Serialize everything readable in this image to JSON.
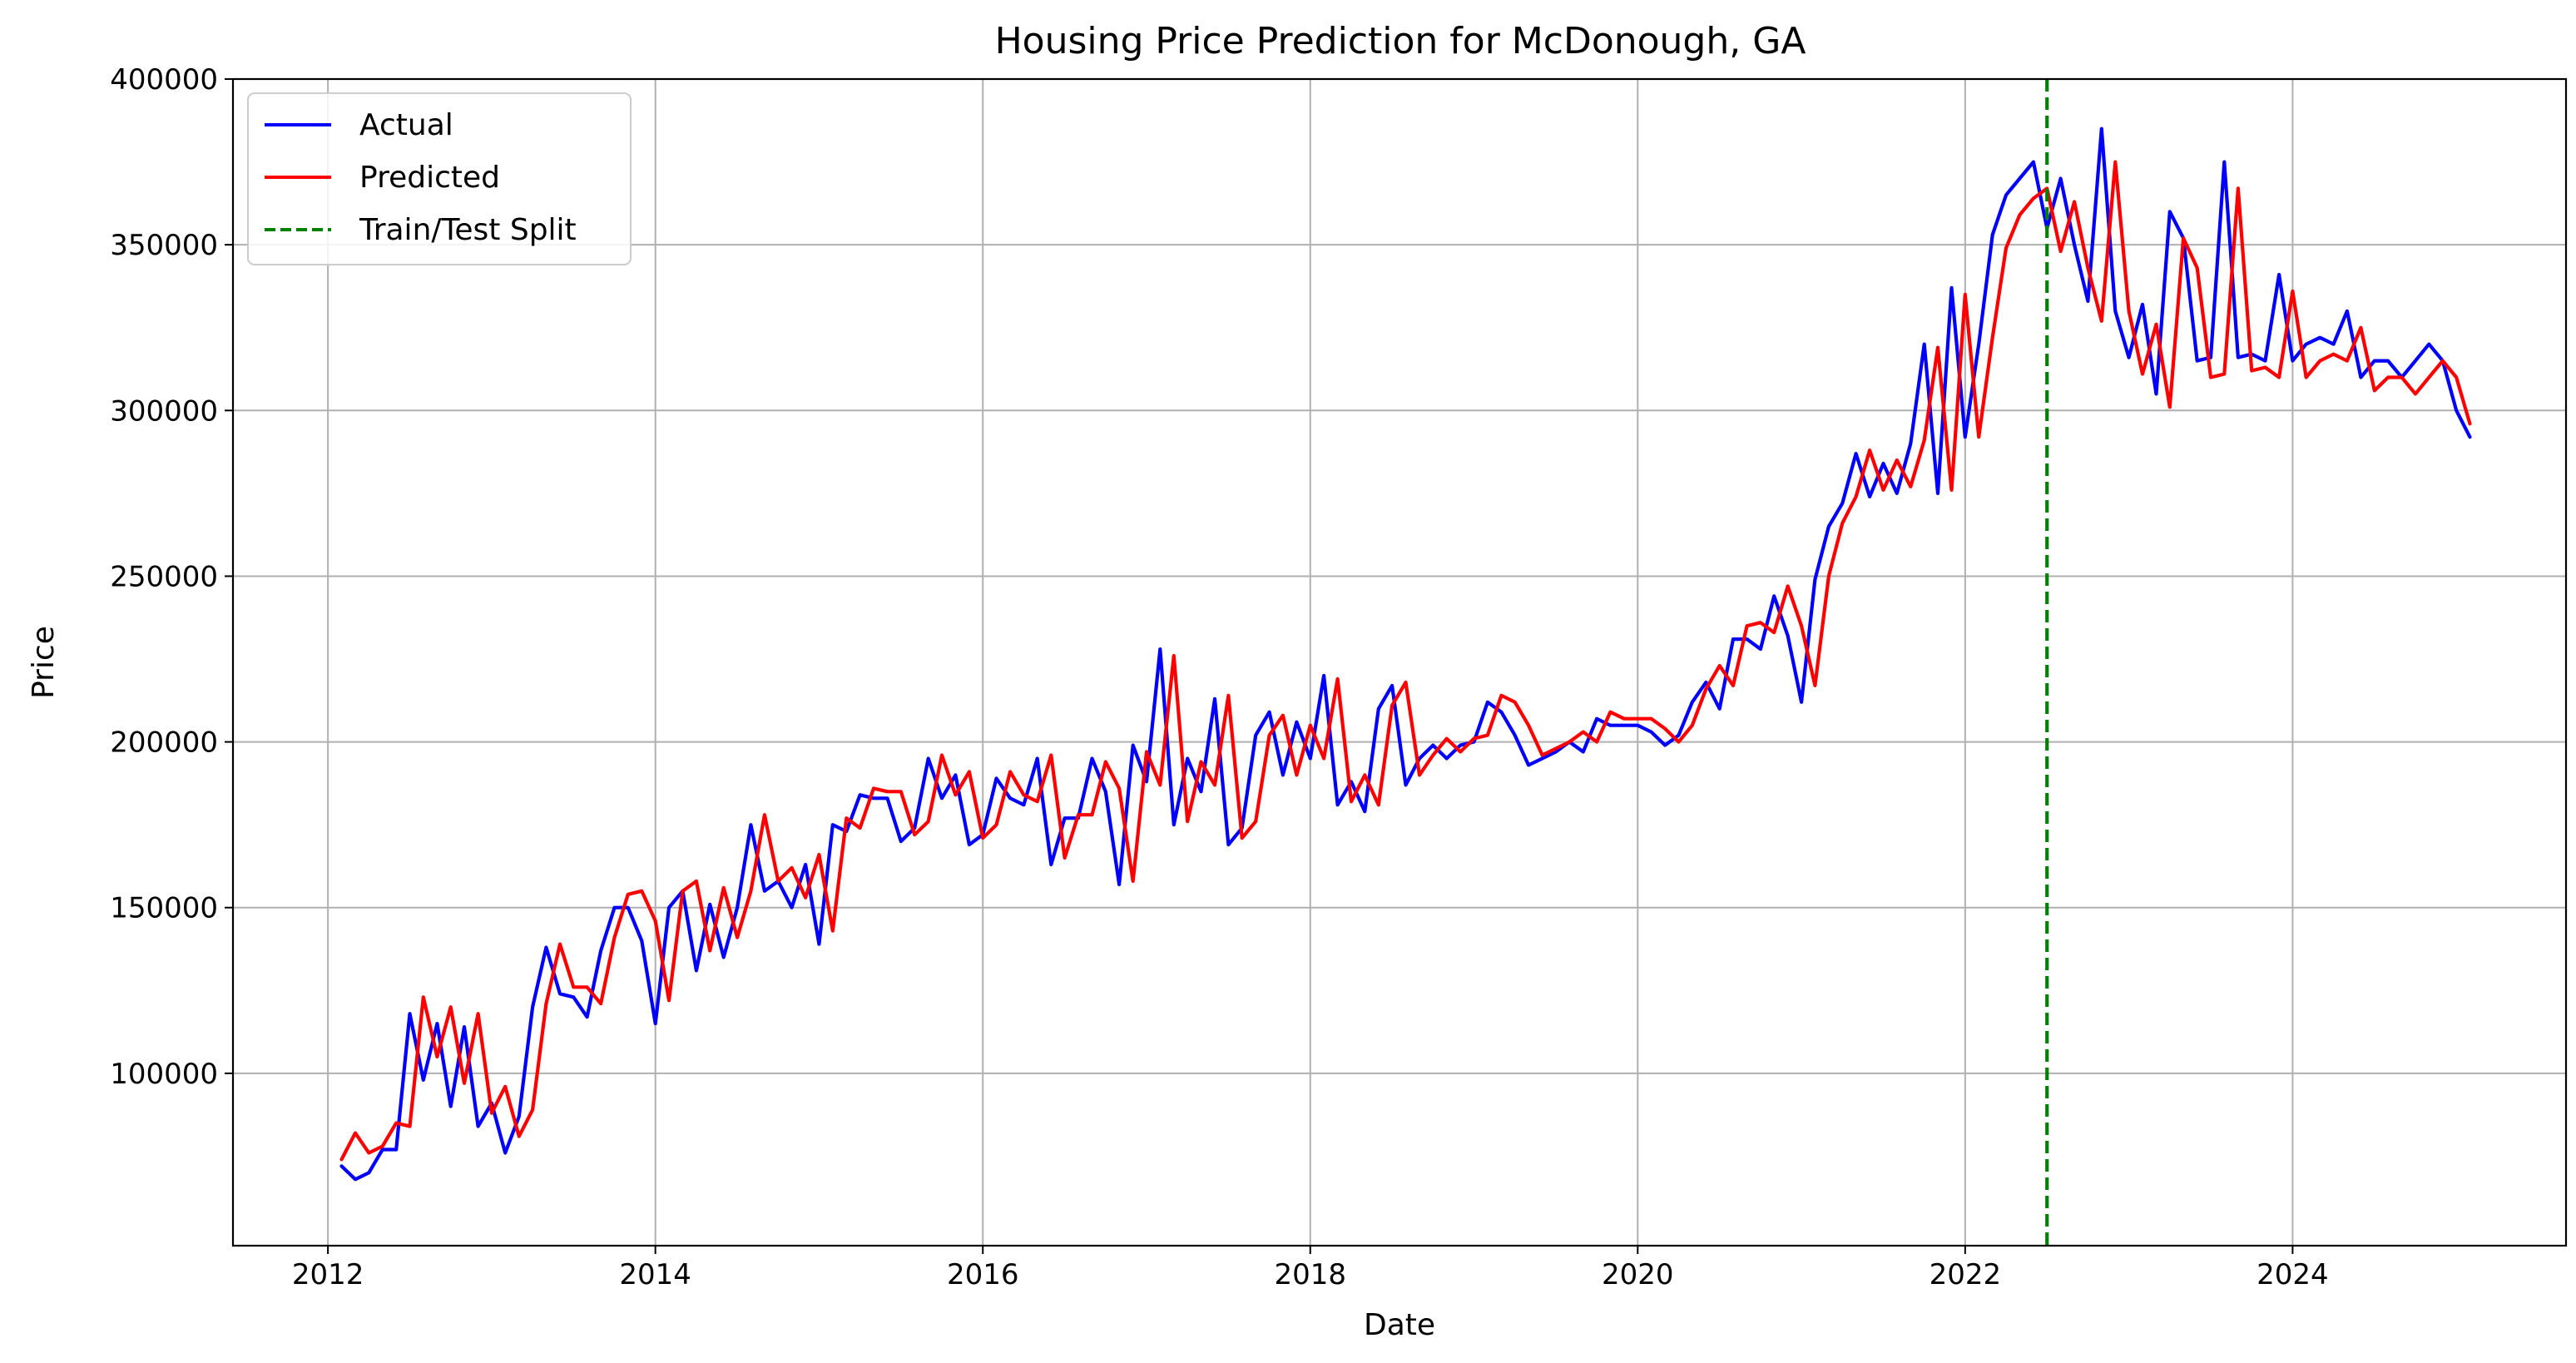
{
  "chart_data": {
    "type": "line",
    "title": "Housing Price Prediction for McDonough, GA",
    "xlabel": "Date",
    "ylabel": "Price",
    "xlim": [
      2011.42,
      2025.67
    ],
    "ylim": [
      48000,
      400000
    ],
    "x_ticks": [
      2012,
      2014,
      2016,
      2018,
      2020,
      2022,
      2024
    ],
    "y_ticks": [
      100000,
      150000,
      200000,
      250000,
      300000,
      350000,
      400000
    ],
    "grid": true,
    "legend_position": "top-left",
    "split_x": 2022.5,
    "split_name": "Train/Test Split",
    "split_color": "#008000",
    "x": [
      2012.083,
      2012.167,
      2012.25,
      2012.333,
      2012.417,
      2012.5,
      2012.583,
      2012.667,
      2012.75,
      2012.833,
      2012.917,
      2013.0,
      2013.083,
      2013.167,
      2013.25,
      2013.333,
      2013.417,
      2013.5,
      2013.583,
      2013.667,
      2013.75,
      2013.833,
      2013.917,
      2014.0,
      2014.083,
      2014.167,
      2014.25,
      2014.333,
      2014.417,
      2014.5,
      2014.583,
      2014.667,
      2014.75,
      2014.833,
      2014.917,
      2015.0,
      2015.083,
      2015.167,
      2015.25,
      2015.333,
      2015.417,
      2015.5,
      2015.583,
      2015.667,
      2015.75,
      2015.833,
      2015.917,
      2016.0,
      2016.083,
      2016.167,
      2016.25,
      2016.333,
      2016.417,
      2016.5,
      2016.583,
      2016.667,
      2016.75,
      2016.833,
      2016.917,
      2017.0,
      2017.083,
      2017.167,
      2017.25,
      2017.333,
      2017.417,
      2017.5,
      2017.583,
      2017.667,
      2017.75,
      2017.833,
      2017.917,
      2018.0,
      2018.083,
      2018.167,
      2018.25,
      2018.333,
      2018.417,
      2018.5,
      2018.583,
      2018.667,
      2018.75,
      2018.833,
      2018.917,
      2019.0,
      2019.083,
      2019.167,
      2019.25,
      2019.333,
      2019.417,
      2019.5,
      2019.583,
      2019.667,
      2019.75,
      2019.833,
      2019.917,
      2020.0,
      2020.083,
      2020.167,
      2020.25,
      2020.333,
      2020.417,
      2020.5,
      2020.583,
      2020.667,
      2020.75,
      2020.833,
      2020.917,
      2021.0,
      2021.083,
      2021.167,
      2021.25,
      2021.333,
      2021.417,
      2021.5,
      2021.583,
      2021.667,
      2021.75,
      2021.833,
      2021.917,
      2022.0,
      2022.083,
      2022.167,
      2022.25,
      2022.333,
      2022.417,
      2022.5,
      2022.583,
      2022.667,
      2022.75,
      2022.833,
      2022.917,
      2023.0,
      2023.083,
      2023.167,
      2023.25,
      2023.333,
      2023.417,
      2023.5,
      2023.583,
      2023.667,
      2023.75,
      2023.833,
      2023.917,
      2024.0,
      2024.083,
      2024.167,
      2024.25,
      2024.333,
      2024.417,
      2024.5,
      2024.583,
      2024.667,
      2024.75,
      2024.833,
      2024.917,
      2025.0,
      2025.083
    ],
    "series": [
      {
        "name": "Actual",
        "color": "#0000ff",
        "values": [
          72000,
          68000,
          70000,
          77000,
          77000,
          118000,
          98000,
          115000,
          90000,
          114000,
          84000,
          91000,
          76000,
          87000,
          120000,
          138000,
          124000,
          123000,
          117000,
          137000,
          150000,
          150000,
          140000,
          115000,
          150000,
          155000,
          131000,
          151000,
          135000,
          150000,
          175000,
          155000,
          158000,
          150000,
          163000,
          139000,
          175000,
          173000,
          184000,
          183000,
          183000,
          170000,
          174000,
          195000,
          183000,
          190000,
          169000,
          172000,
          189000,
          183000,
          181000,
          195000,
          163000,
          177000,
          177000,
          195000,
          185000,
          157000,
          199000,
          188000,
          228000,
          175000,
          195000,
          185000,
          213000,
          169000,
          174000,
          202000,
          209000,
          190000,
          206000,
          195000,
          220000,
          181000,
          188000,
          179000,
          210000,
          217000,
          187000,
          195000,
          199000,
          195000,
          199000,
          200000,
          212000,
          209000,
          202000,
          193000,
          195000,
          197000,
          200000,
          197000,
          207000,
          205000,
          205000,
          205000,
          203000,
          199000,
          202000,
          212000,
          218000,
          210000,
          231000,
          231000,
          228000,
          244000,
          232000,
          212000,
          249000,
          265000,
          272000,
          287000,
          274000,
          284000,
          275000,
          290000,
          320000,
          275000,
          337000,
          292000,
          320000,
          353000,
          365000,
          370000,
          375000,
          355000,
          370000,
          350000,
          333000,
          385000,
          330000,
          316000,
          332000,
          305000,
          360000,
          352000,
          315000,
          316000,
          375000,
          316000,
          317000,
          315000,
          341000,
          315000,
          320000,
          322000,
          320000,
          330000,
          310000,
          315000,
          315000,
          310000,
          315000,
          320000,
          315000,
          300000,
          292000
        ]
      },
      {
        "name": "Predicted",
        "color": "#ff0000",
        "values": [
          74000,
          82000,
          76000,
          78000,
          85000,
          84000,
          123000,
          105000,
          120000,
          97000,
          118000,
          88000,
          96000,
          81000,
          89000,
          121000,
          139000,
          126000,
          126000,
          121000,
          141000,
          154000,
          155000,
          146000,
          122000,
          155000,
          158000,
          137000,
          156000,
          141000,
          155000,
          178000,
          158000,
          162000,
          153000,
          166000,
          143000,
          177000,
          174000,
          186000,
          185000,
          185000,
          172000,
          176000,
          196000,
          184000,
          191000,
          171000,
          175000,
          191000,
          184000,
          182000,
          196000,
          165000,
          178000,
          178000,
          194000,
          186000,
          158000,
          197000,
          187000,
          226000,
          176000,
          194000,
          187000,
          214000,
          171000,
          176000,
          202000,
          208000,
          190000,
          205000,
          195000,
          219000,
          182000,
          190000,
          181000,
          211000,
          218000,
          190000,
          196000,
          201000,
          197000,
          201000,
          202000,
          214000,
          212000,
          205000,
          196000,
          198000,
          200000,
          203000,
          200000,
          209000,
          207000,
          207000,
          207000,
          204000,
          200000,
          205000,
          216000,
          223000,
          217000,
          235000,
          236000,
          233000,
          247000,
          235000,
          217000,
          250000,
          266000,
          274000,
          288000,
          276000,
          285000,
          277000,
          291000,
          319000,
          276000,
          335000,
          292000,
          322000,
          349000,
          359000,
          364000,
          367000,
          348000,
          363000,
          343000,
          327000,
          375000,
          330000,
          311000,
          326000,
          301000,
          352000,
          343000,
          310000,
          311000,
          367000,
          312000,
          313000,
          310000,
          336000,
          310000,
          315000,
          317000,
          315000,
          325000,
          306000,
          310000,
          310000,
          305000,
          310000,
          315000,
          310000,
          296000
        ]
      }
    ]
  }
}
